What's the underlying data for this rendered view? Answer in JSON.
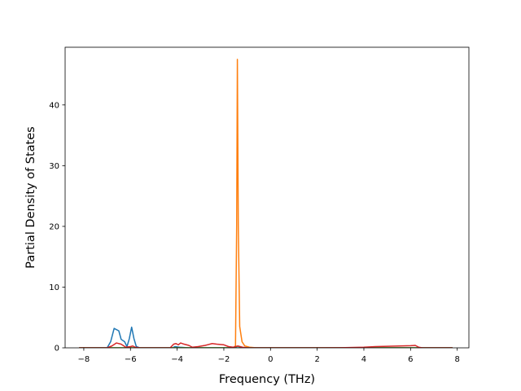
{
  "chart_data": {
    "type": "line",
    "title": "",
    "xlabel": "Frequency (THz)",
    "ylabel": "Partial Density of States",
    "xlim": [
      -8.8,
      8.5
    ],
    "ylim": [
      0,
      49.5
    ],
    "xticks": [
      -8,
      -6,
      -4,
      -2,
      0,
      2,
      4,
      6,
      8
    ],
    "yticks": [
      0,
      10,
      20,
      30,
      40
    ],
    "grid": false,
    "legend": "none",
    "series": [
      {
        "color": "#1f77b4",
        "points": [
          [
            -8.2,
            0
          ],
          [
            -7.0,
            0
          ],
          [
            -6.85,
            1.0
          ],
          [
            -6.7,
            3.2
          ],
          [
            -6.5,
            2.8
          ],
          [
            -6.4,
            1.4
          ],
          [
            -6.25,
            1.0
          ],
          [
            -6.15,
            0.2
          ],
          [
            -6.05,
            1.5
          ],
          [
            -5.95,
            3.4
          ],
          [
            -5.85,
            1.5
          ],
          [
            -5.75,
            0.2
          ],
          [
            -5.6,
            0
          ],
          [
            -4.2,
            0
          ],
          [
            -4.1,
            0.2
          ],
          [
            -3.9,
            0.1
          ],
          [
            -3.5,
            0
          ],
          [
            7.8,
            0
          ]
        ]
      },
      {
        "color": "#ff7f0e",
        "points": [
          [
            -8.2,
            0
          ],
          [
            -1.55,
            0
          ],
          [
            -1.5,
            0.4
          ],
          [
            -1.45,
            20
          ],
          [
            -1.42,
            47.5
          ],
          [
            -1.38,
            20
          ],
          [
            -1.32,
            3.5
          ],
          [
            -1.22,
            1.0
          ],
          [
            -1.1,
            0.3
          ],
          [
            -0.9,
            0.1
          ],
          [
            -0.6,
            0
          ],
          [
            7.8,
            0
          ]
        ]
      },
      {
        "color": "#2ca02c",
        "points": [
          [
            -8.2,
            0
          ],
          [
            -1.6,
            0
          ],
          [
            -1.5,
            0.1
          ],
          [
            -1.4,
            0.3
          ],
          [
            -1.3,
            0.1
          ],
          [
            -1.2,
            0
          ],
          [
            7.8,
            0
          ]
        ]
      },
      {
        "color": "#d62728",
        "points": [
          [
            -8.2,
            0
          ],
          [
            -7.0,
            0
          ],
          [
            -6.8,
            0.3
          ],
          [
            -6.6,
            0.8
          ],
          [
            -6.4,
            0.6
          ],
          [
            -6.2,
            0.1
          ],
          [
            -6.0,
            0.2
          ],
          [
            -5.9,
            0.3
          ],
          [
            -5.8,
            0.1
          ],
          [
            -5.6,
            0
          ],
          [
            -4.3,
            0
          ],
          [
            -4.15,
            0.6
          ],
          [
            -4.05,
            0.7
          ],
          [
            -3.95,
            0.5
          ],
          [
            -3.85,
            0.8
          ],
          [
            -3.7,
            0.6
          ],
          [
            -3.5,
            0.4
          ],
          [
            -3.35,
            0.1
          ],
          [
            -3.1,
            0.2
          ],
          [
            -2.8,
            0.4
          ],
          [
            -2.5,
            0.7
          ],
          [
            -2.3,
            0.6
          ],
          [
            -2.0,
            0.5
          ],
          [
            -1.8,
            0.2
          ],
          [
            -1.6,
            0.1
          ],
          [
            -1.4,
            0.3
          ],
          [
            -1.2,
            0.1
          ],
          [
            -1.0,
            0
          ],
          [
            0,
            0
          ],
          [
            2,
            0
          ],
          [
            3,
            0.02
          ],
          [
            4,
            0.1
          ],
          [
            4.5,
            0.2
          ],
          [
            5.0,
            0.25
          ],
          [
            5.5,
            0.3
          ],
          [
            6.0,
            0.35
          ],
          [
            6.2,
            0.4
          ],
          [
            6.35,
            0.1
          ],
          [
            6.5,
            0
          ],
          [
            7.8,
            0
          ]
        ]
      }
    ]
  }
}
